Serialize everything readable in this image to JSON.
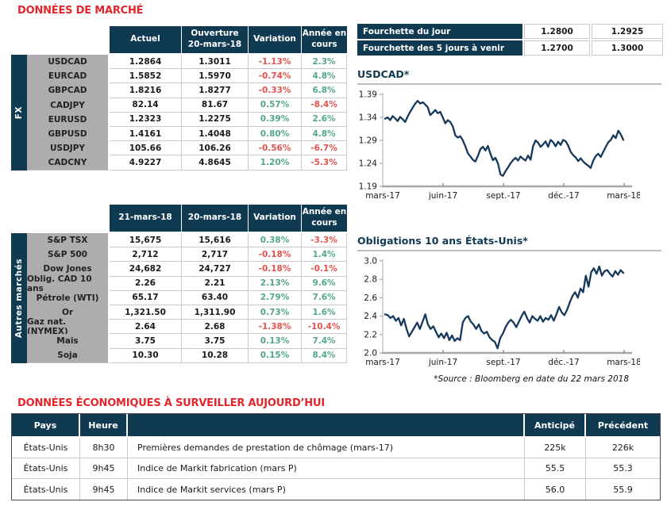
{
  "titles": {
    "market": "DONNÉES DE MARCHÉ",
    "econ": "DONNÉES ÉCONOMIQUES À SURVEILLER AUJOURD’HUI"
  },
  "colors": {
    "navy": "#0F3A52",
    "title_red": "#E2262C",
    "negative": "#E2534E",
    "positive": "#55A687",
    "label_gray": "#ADADAF",
    "chart_line": "#16395B"
  },
  "fx_table": {
    "group_label": "FX",
    "headers": [
      "Actuel",
      "Ouverture\n20-mars-18",
      "Variation",
      "Année en\ncours"
    ],
    "colored_columns": [
      2,
      3
    ],
    "rows": [
      {
        "label": "USDCAD",
        "values": [
          "1.2864",
          "1.3011",
          "-1.13%",
          "2.3%"
        ]
      },
      {
        "label": "EURCAD",
        "values": [
          "1.5852",
          "1.5970",
          "-0.74%",
          "4.8%"
        ]
      },
      {
        "label": "GBPCAD",
        "values": [
          "1.8216",
          "1.8277",
          "-0.33%",
          "6.8%"
        ]
      },
      {
        "label": "CADJPY",
        "values": [
          "82.14",
          "81.67",
          "0.57%",
          "-8.4%"
        ]
      },
      {
        "label": "EURUSD",
        "values": [
          "1.2323",
          "1.2275",
          "0.39%",
          "2.6%"
        ]
      },
      {
        "label": "GBPUSD",
        "values": [
          "1.4161",
          "1.4048",
          "0.80%",
          "4.8%"
        ]
      },
      {
        "label": "USDJPY",
        "values": [
          "105.66",
          "106.26",
          "-0.56%",
          "-6.7%"
        ]
      },
      {
        "label": "CADCNY",
        "values": [
          "4.9227",
          "4.8645",
          "1.20%",
          "-5.3%"
        ]
      }
    ]
  },
  "markets_table": {
    "group_label": "Autres marchés",
    "headers": [
      "21-mars-18",
      "20-mars-18",
      "Variation",
      "Année en\ncours"
    ],
    "colored_columns": [
      2,
      3
    ],
    "rows": [
      {
        "label": "S&P TSX",
        "values": [
          "15,675",
          "15,616",
          "0.38%",
          "-3.3%"
        ]
      },
      {
        "label": "S&P 500",
        "values": [
          "2,712",
          "2,717",
          "-0.18%",
          "1.4%"
        ]
      },
      {
        "label": "Dow Jones",
        "values": [
          "24,682",
          "24,727",
          "-0.18%",
          "-0.1%"
        ]
      },
      {
        "label": "Oblig. CAD 10 ans",
        "values": [
          "2.26",
          "2.21",
          "2.13%",
          "9.6%"
        ]
      },
      {
        "label": "Pétrole (WTI)",
        "values": [
          "65.17",
          "63.40",
          "2.79%",
          "7.6%"
        ]
      },
      {
        "label": "Or",
        "values": [
          "1,321.50",
          "1,311.90",
          "0.73%",
          "1.6%"
        ]
      },
      {
        "label": "Gaz nat. (NYMEX)",
        "values": [
          "2.64",
          "2.68",
          "-1.38%",
          "-10.4%"
        ]
      },
      {
        "label": "Maïs",
        "values": [
          "3.75",
          "3.75",
          "0.13%",
          "7.4%"
        ]
      },
      {
        "label": "Soja",
        "values": [
          "10.30",
          "10.28",
          "0.15%",
          "8.4%"
        ]
      }
    ]
  },
  "fourchette": {
    "rows": [
      {
        "label": "Fourchette du jour",
        "low": "1.2800",
        "high": "1.2925"
      },
      {
        "label": "Fourchette des 5 jours à venir",
        "low": "1.2700",
        "high": "1.3000"
      }
    ]
  },
  "chart_data": [
    {
      "type": "line",
      "title": "USDCAD*",
      "xlabel": "",
      "ylabel": "",
      "ylim": [
        1.19,
        1.39
      ],
      "yticks": [
        1.19,
        1.24,
        1.29,
        1.34,
        1.39
      ],
      "y_decimals": 2,
      "grid": false,
      "legend": "none",
      "x_labels": [
        "mars-17",
        "juin-17",
        "sept.-17",
        "déc.-17",
        "mars-18"
      ],
      "values": [
        1.337,
        1.34,
        1.334,
        1.343,
        1.338,
        1.332,
        1.341,
        1.336,
        1.33,
        1.342,
        1.352,
        1.361,
        1.37,
        1.376,
        1.37,
        1.373,
        1.368,
        1.362,
        1.345,
        1.35,
        1.356,
        1.349,
        1.352,
        1.34,
        1.327,
        1.334,
        1.33,
        1.32,
        1.301,
        1.296,
        1.299,
        1.29,
        1.277,
        1.262,
        1.255,
        1.248,
        1.244,
        1.256,
        1.271,
        1.276,
        1.268,
        1.278,
        1.261,
        1.247,
        1.252,
        1.24,
        1.216,
        1.213,
        1.223,
        1.231,
        1.24,
        1.247,
        1.252,
        1.246,
        1.255,
        1.25,
        1.246,
        1.257,
        1.248,
        1.277,
        1.29,
        1.285,
        1.276,
        1.281,
        1.288,
        1.276,
        1.291,
        1.286,
        1.277,
        1.287,
        1.28,
        1.291,
        1.288,
        1.279,
        1.265,
        1.258,
        1.253,
        1.245,
        1.251,
        1.244,
        1.239,
        1.235,
        1.23,
        1.246,
        1.256,
        1.261,
        1.254,
        1.265,
        1.276,
        1.286,
        1.291,
        1.301,
        1.295,
        1.311,
        1.303,
        1.291
      ]
    },
    {
      "type": "line",
      "title": "Obligations 10 ans États-Unis*",
      "xlabel": "",
      "ylabel": "",
      "ylim": [
        2.0,
        3.0
      ],
      "yticks": [
        2.0,
        2.2,
        2.4,
        2.6,
        2.8,
        3.0
      ],
      "y_decimals": 1,
      "grid": false,
      "legend": "none",
      "x_labels": [
        "mars-17",
        "juin-17",
        "sept.-17",
        "déc.-17",
        "mars-18"
      ],
      "values": [
        2.42,
        2.41,
        2.38,
        2.4,
        2.35,
        2.38,
        2.3,
        2.37,
        2.26,
        2.18,
        2.23,
        2.28,
        2.33,
        2.26,
        2.34,
        2.42,
        2.31,
        2.26,
        2.29,
        2.23,
        2.17,
        2.21,
        2.16,
        2.22,
        2.14,
        2.19,
        2.13,
        2.16,
        2.14,
        2.33,
        2.38,
        2.4,
        2.34,
        2.31,
        2.26,
        2.31,
        2.24,
        2.21,
        2.23,
        2.17,
        2.14,
        2.12,
        2.05,
        2.16,
        2.21,
        2.28,
        2.33,
        2.36,
        2.33,
        2.28,
        2.34,
        2.4,
        2.45,
        2.38,
        2.33,
        2.4,
        2.37,
        2.35,
        2.4,
        2.34,
        2.38,
        2.36,
        2.41,
        2.35,
        2.42,
        2.5,
        2.44,
        2.41,
        2.47,
        2.55,
        2.62,
        2.66,
        2.6,
        2.7,
        2.66,
        2.84,
        2.72,
        2.88,
        2.92,
        2.86,
        2.94,
        2.84,
        2.89,
        2.9,
        2.86,
        2.83,
        2.89,
        2.85,
        2.9,
        2.87
      ]
    }
  ],
  "source_note": "*Source : Bloomberg en date du  22 mars 2018",
  "econ_table": {
    "headers": [
      "Pays",
      "Heure",
      "",
      "Anticipé",
      "Précédent"
    ],
    "rows": [
      {
        "pays": "États-Unis",
        "heure": "8h30",
        "desc": "Premières demandes de prestation de chômage (mars-17)",
        "anticipe": "225k",
        "precedent": "226k"
      },
      {
        "pays": "États-Unis",
        "heure": "9h45",
        "desc": "Indice de Markit fabrication (mars P)",
        "anticipe": "55.5",
        "precedent": "55.3"
      },
      {
        "pays": "États-Unis",
        "heure": "9h45",
        "desc": "Indice de Markit services (mars P)",
        "anticipe": "56.0",
        "precedent": "55.9"
      }
    ]
  }
}
